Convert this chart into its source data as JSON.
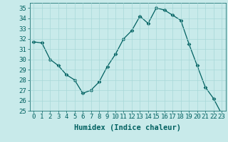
{
  "x": [
    0,
    1,
    2,
    3,
    4,
    5,
    6,
    7,
    8,
    9,
    10,
    11,
    12,
    13,
    14,
    15,
    16,
    17,
    18,
    19,
    20,
    21,
    22,
    23
  ],
  "y": [
    31.7,
    31.6,
    30.0,
    29.4,
    28.5,
    28.0,
    26.7,
    27.0,
    27.8,
    29.3,
    30.5,
    32.0,
    32.8,
    34.2,
    33.5,
    35.0,
    34.8,
    34.3,
    33.8,
    31.5,
    29.4,
    27.3,
    26.2,
    24.7
  ],
  "line_color": "#006060",
  "marker": "D",
  "marker_size": 2.5,
  "bg_color": "#c8eaea",
  "grid_color": "#a8d8d8",
  "xlabel": "Humidex (Indice chaleur)",
  "xlim": [
    -0.5,
    23.5
  ],
  "ylim": [
    25,
    35.5
  ],
  "yticks": [
    25,
    26,
    27,
    28,
    29,
    30,
    31,
    32,
    33,
    34,
    35
  ],
  "xticks": [
    0,
    1,
    2,
    3,
    4,
    5,
    6,
    7,
    8,
    9,
    10,
    11,
    12,
    13,
    14,
    15,
    16,
    17,
    18,
    19,
    20,
    21,
    22,
    23
  ],
  "tick_color": "#006060",
  "label_color": "#006060",
  "font_size": 6.5,
  "xlabel_font_size": 7.5
}
